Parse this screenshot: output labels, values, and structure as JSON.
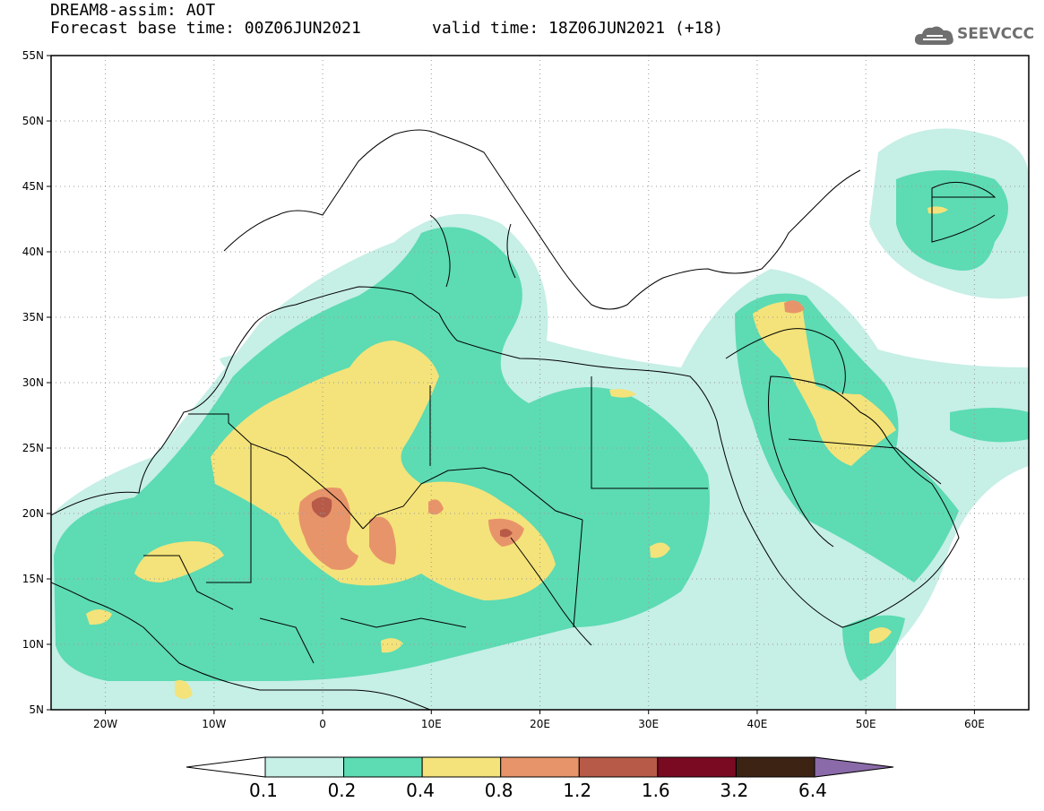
{
  "header": {
    "title": "DREAM8-assim: AOT",
    "base_time": "Forecast base time: 00Z06JUN2021",
    "valid_time": "valid time: 18Z06JUN2021 (+18)"
  },
  "logo": {
    "text": "SEEVCCC",
    "icon": "cloud-icon",
    "color": "#6f6f6f"
  },
  "map": {
    "lon_range": [
      -25,
      65
    ],
    "lat_range": [
      5,
      55
    ],
    "lat_labels": [
      "55N",
      "50N",
      "45N",
      "40N",
      "35N",
      "30N",
      "25N",
      "20N",
      "15N",
      "10N",
      "5N"
    ],
    "lat_values": [
      55,
      50,
      45,
      40,
      35,
      30,
      25,
      20,
      15,
      10,
      5
    ],
    "lon_labels": [
      "20W",
      "10W",
      "0",
      "10E",
      "20E",
      "30E",
      "40E",
      "50E",
      "60E"
    ],
    "lon_values": [
      -20,
      -10,
      0,
      10,
      20,
      30,
      40,
      50,
      60
    ],
    "grid": "dotted",
    "field": "AOT"
  },
  "colorbar": {
    "labels": [
      "0.1",
      "0.2",
      "0.4",
      "0.8",
      "1.2",
      "1.6",
      "3.2",
      "6.4"
    ],
    "colors": [
      "#c6efe6",
      "#5ddbb3",
      "#f4e37a",
      "#e8946a",
      "#b75a48",
      "#7a0a22",
      "#3d2314",
      "#8a6aa8"
    ],
    "low_arrow_color": "#ffffff",
    "high_arrow_color": "#8a6aa8"
  }
}
